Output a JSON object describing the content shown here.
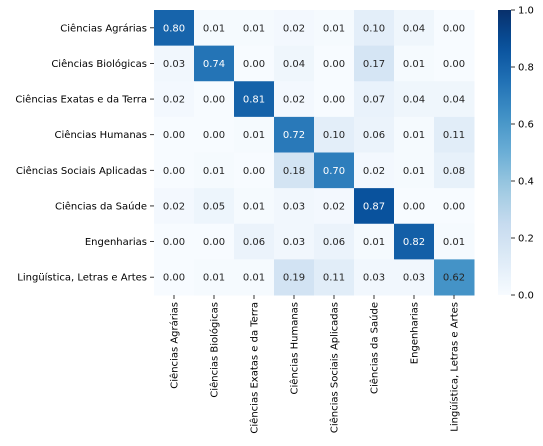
{
  "chart_data": {
    "type": "heatmap",
    "title": "",
    "xlabel": "",
    "ylabel": "",
    "rows": [
      "Ciências Agrárias",
      "Ciências Biológicas",
      "Ciências Exatas e da Terra",
      "Ciências Humanas",
      "Ciências Sociais Aplicadas",
      "Ciências da Saúde",
      "Engenharias",
      "Lingüística, Letras e Artes"
    ],
    "columns": [
      "Ciências Agrárias",
      "Ciências Biológicas",
      "Ciências Exatas e da Terra",
      "Ciências Humanas",
      "Ciências Sociais Aplicadas",
      "Ciências da Saúde",
      "Engenharias",
      "Lingüística, Letras e Artes"
    ],
    "values": [
      [
        0.8,
        0.01,
        0.01,
        0.02,
        0.01,
        0.1,
        0.04,
        0.0
      ],
      [
        0.03,
        0.74,
        0.0,
        0.04,
        0.0,
        0.17,
        0.01,
        0.0
      ],
      [
        0.02,
        0.0,
        0.81,
        0.02,
        0.0,
        0.07,
        0.04,
        0.04
      ],
      [
        0.0,
        0.0,
        0.01,
        0.72,
        0.1,
        0.06,
        0.01,
        0.11
      ],
      [
        0.0,
        0.01,
        0.0,
        0.18,
        0.7,
        0.02,
        0.01,
        0.08
      ],
      [
        0.02,
        0.05,
        0.01,
        0.03,
        0.02,
        0.87,
        0.0,
        0.0
      ],
      [
        0.0,
        0.0,
        0.06,
        0.03,
        0.06,
        0.01,
        0.82,
        0.01
      ],
      [
        0.0,
        0.01,
        0.01,
        0.19,
        0.11,
        0.03,
        0.03,
        0.62
      ]
    ],
    "value_format": "0.00",
    "colormap": "Blues",
    "colorbar": {
      "min": 0.0,
      "max": 1.0,
      "ticks": [
        "0.0",
        "0.2",
        "0.4",
        "0.6",
        "0.8",
        "1.0"
      ]
    },
    "grid": false
  }
}
